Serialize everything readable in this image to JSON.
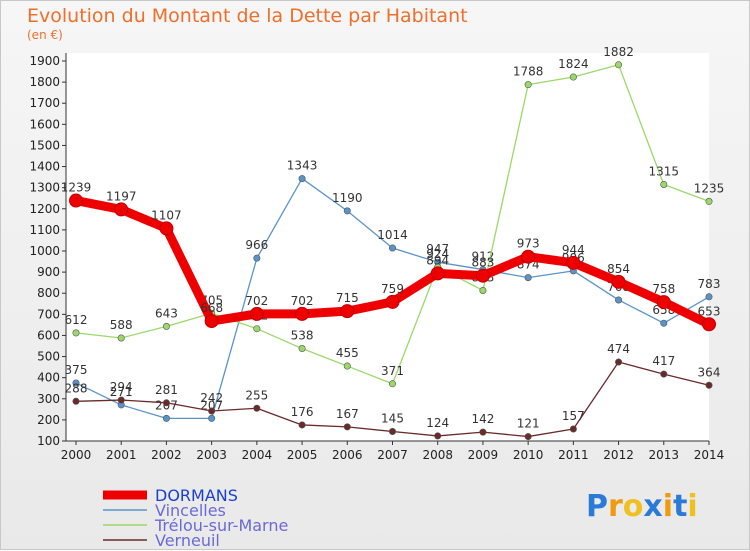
{
  "title": "Evolution du Montant de la Dette par Habitant",
  "unit_label": "(en €)",
  "logo": "Proxiti",
  "chart_data": {
    "type": "line",
    "title": "Evolution du Montant de la Dette par Habitant",
    "ylabel": "(en €)",
    "x": [
      "2000",
      "2001",
      "2002",
      "2003",
      "2004",
      "2005",
      "2006",
      "2007",
      "2008",
      "2009",
      "2010",
      "2011",
      "2012",
      "2013",
      "2014"
    ],
    "yticks": [
      100,
      200,
      300,
      400,
      500,
      600,
      700,
      800,
      900,
      1000,
      1100,
      1200,
      1300,
      1400,
      1500,
      1600,
      1700,
      1800,
      1900
    ],
    "ylim": [
      100,
      1900
    ],
    "grid": false,
    "legend_position": "bottom-left",
    "series": [
      {
        "name": "Vincelles",
        "color": "#5a93c8",
        "values": [
          375,
          271,
          207,
          207,
          966,
          1343,
          1190,
          1014,
          947,
          912,
          874,
          906,
          768,
          658,
          783
        ],
        "labels": [
          "375",
          "271",
          "207",
          "207",
          "966",
          "1343",
          "1190",
          "1014",
          "947",
          "912",
          "874",
          "906",
          "768",
          "658",
          "783"
        ]
      },
      {
        "name": "Trélou-sur-Marne",
        "color": "#9bd86a",
        "values": [
          612,
          588,
          643,
          705,
          632,
          538,
          455,
          371,
          924,
          813,
          1788,
          1824,
          1882,
          1315,
          1235
        ],
        "labels": [
          "612",
          "588",
          "643",
          "705",
          "632",
          "538",
          "455",
          "371",
          "924",
          "813",
          "1788",
          "1824",
          "1882",
          "1315",
          "1235"
        ]
      },
      {
        "name": "Verneuil",
        "color": "#6b2a2a",
        "values": [
          288,
          294,
          281,
          242,
          255,
          176,
          167,
          145,
          124,
          142,
          121,
          157,
          474,
          417,
          364
        ],
        "labels": [
          "288",
          "294",
          "281",
          "242",
          "255",
          "176",
          "167",
          "145",
          "124",
          "142",
          "121",
          "157",
          "474",
          "417",
          "364"
        ]
      },
      {
        "name": "DORMANS",
        "color": "#ee0000",
        "values": [
          1239,
          1197,
          1107,
          668,
          702,
          702,
          715,
          759,
          894,
          883,
          973,
          944,
          854,
          758,
          653
        ],
        "labels": [
          "1239",
          "1197",
          "1107",
          "668",
          "702",
          "702",
          "715",
          "759",
          "894",
          "883",
          "973",
          "944",
          "854",
          "758",
          "653"
        ]
      }
    ]
  }
}
